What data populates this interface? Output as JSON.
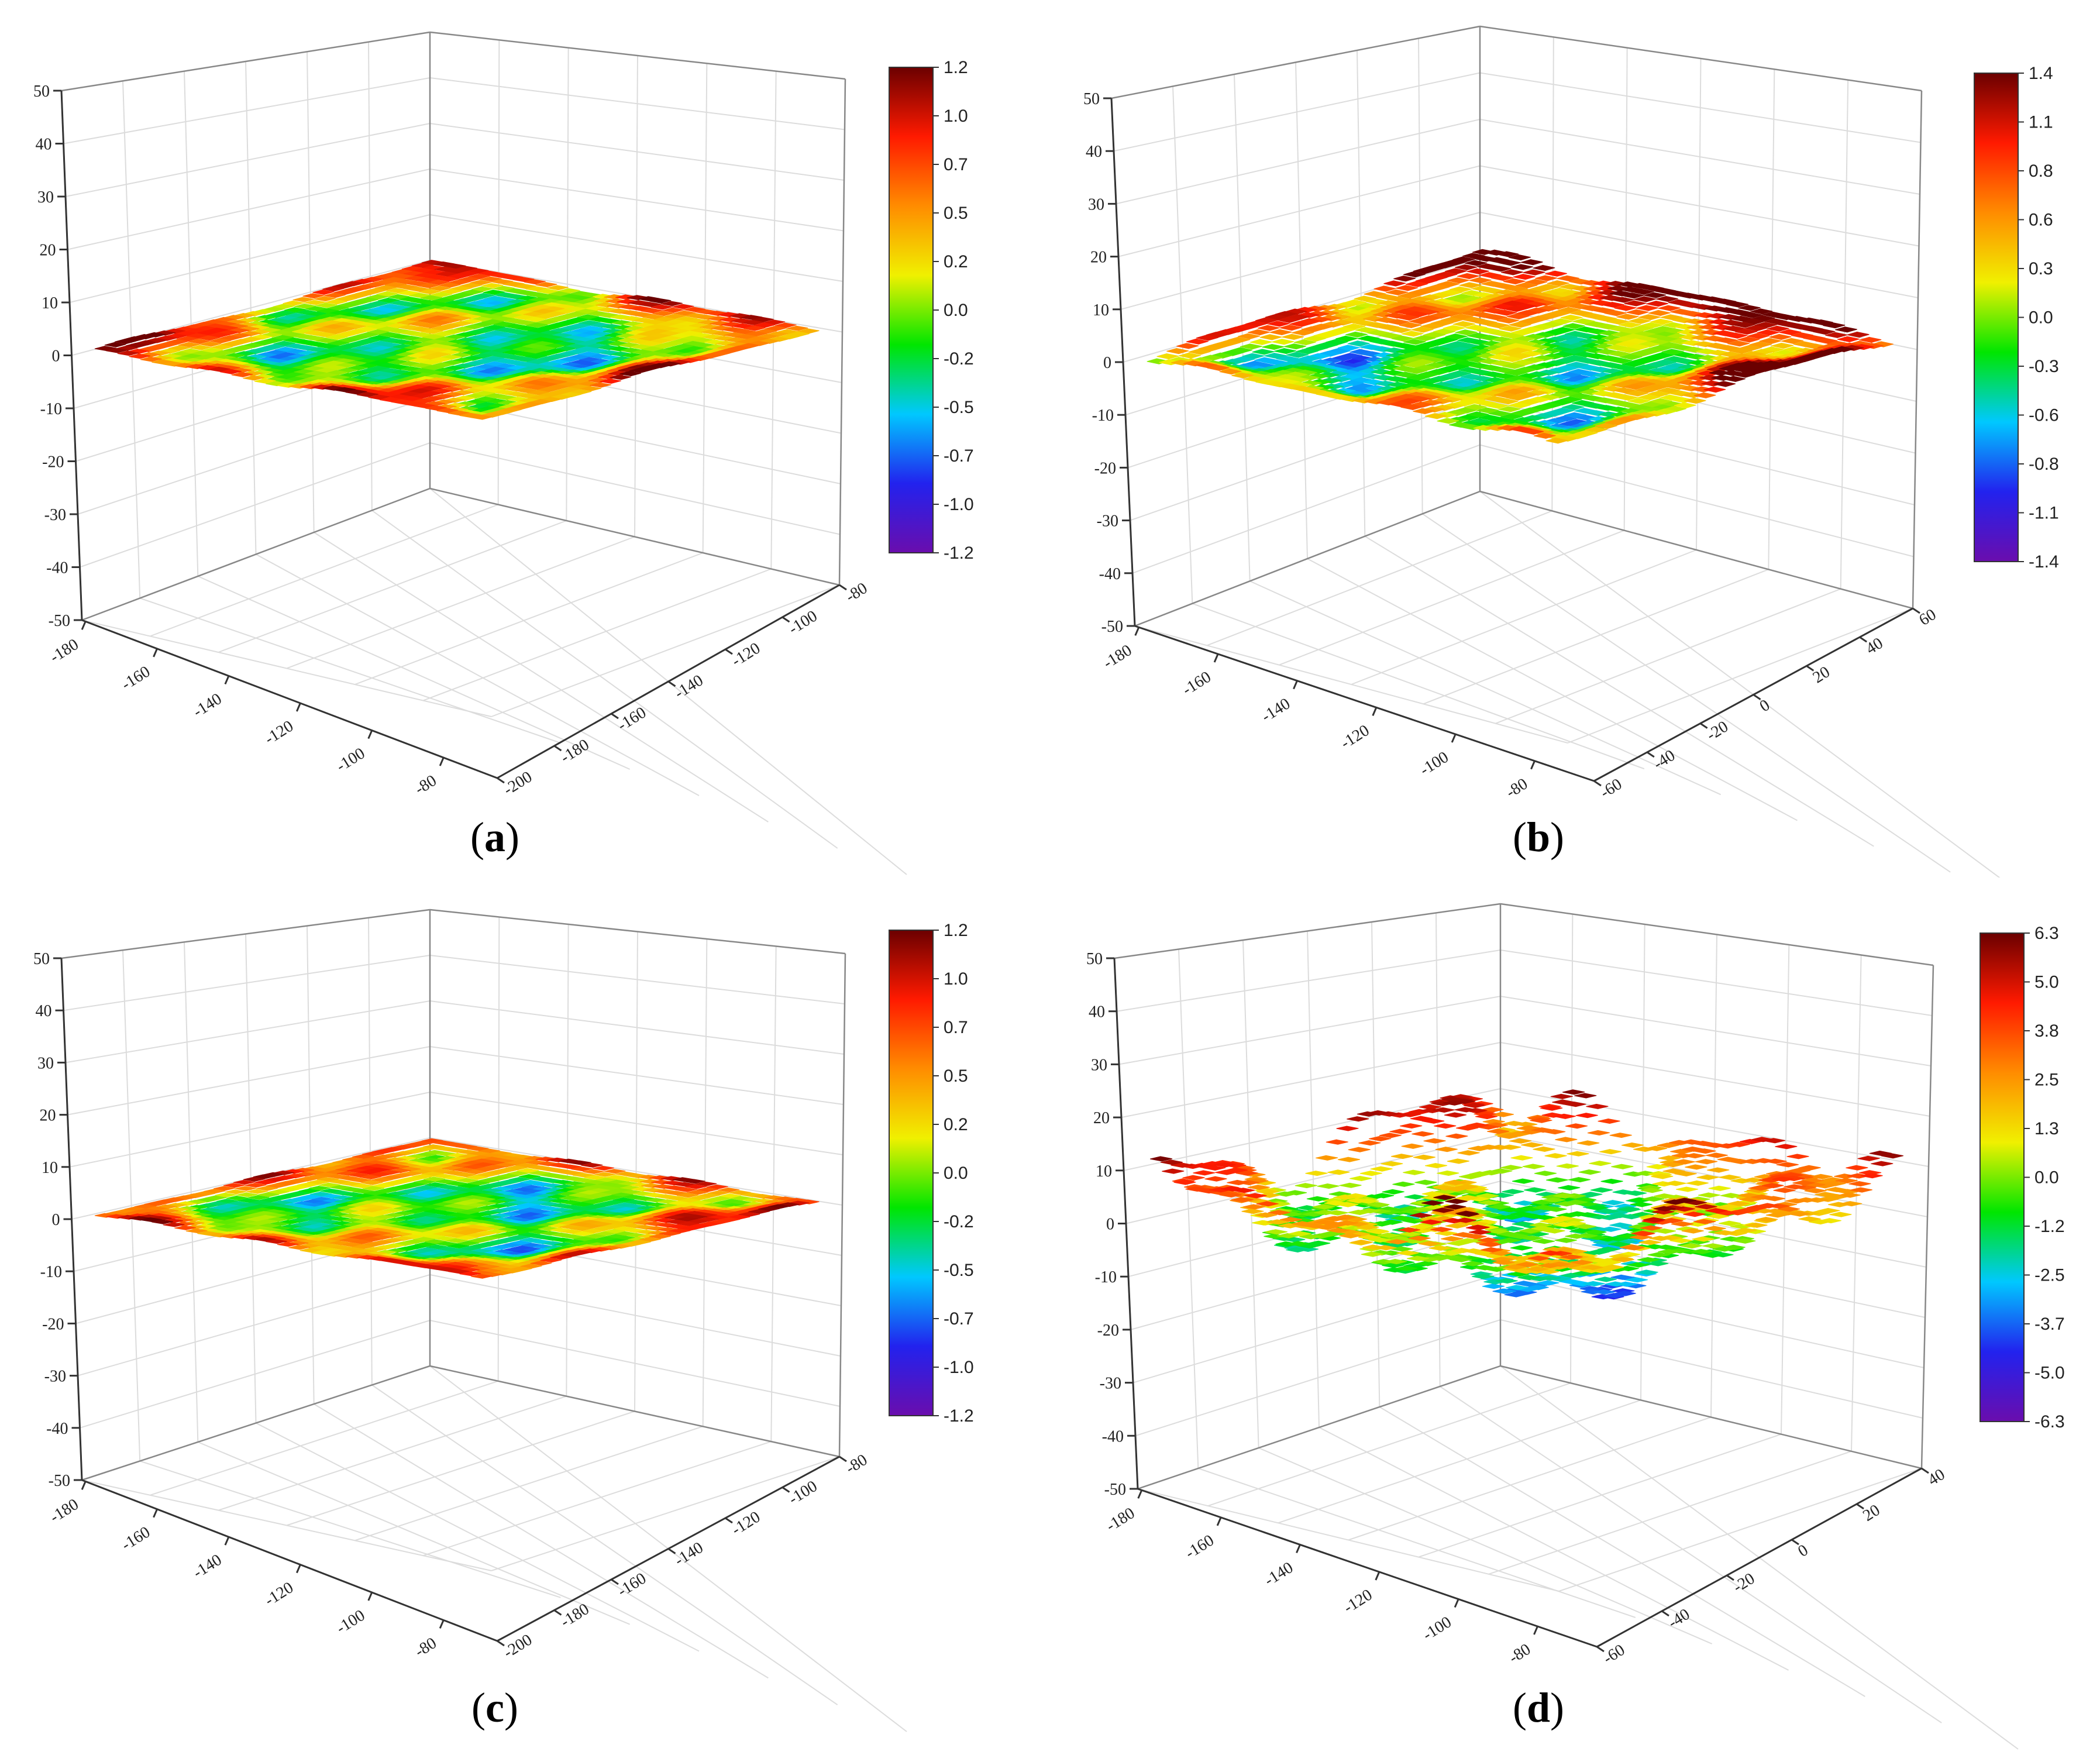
{
  "chart_data": [
    {
      "type": "heatmap",
      "subtype": "3d-surface",
      "panel_label": "a",
      "z_ticks": [
        "50",
        "40",
        "30",
        "20",
        "10",
        "0",
        "-10",
        "-20",
        "-30",
        "-40",
        "-50"
      ],
      "zlim": [
        -50,
        50
      ],
      "x_ticks": [
        "-180",
        "-160",
        "-140",
        "-120",
        "-100",
        "-80"
      ],
      "y_ticks": [
        "-200",
        "-180",
        "-160",
        "-140",
        "-120",
        "-100",
        "-80"
      ],
      "colorbar_ticks": [
        "1.2",
        "1.0",
        "0.7",
        "0.5",
        "0.2",
        "0.0",
        "-0.2",
        "-0.5",
        "-0.7",
        "-1.0",
        "-1.2"
      ],
      "color_range": [
        -1.2,
        1.2
      ],
      "surface_relief": 0.15,
      "colormap": [
        "#6a0dad",
        "#2222ee",
        "#00c8ff",
        "#00e600",
        "#f0f000",
        "#ff8c00",
        "#ff1a00",
        "#6b0000"
      ],
      "grid": true
    },
    {
      "type": "heatmap",
      "subtype": "3d-surface",
      "panel_label": "b",
      "z_ticks": [
        "50",
        "40",
        "30",
        "20",
        "10",
        "0",
        "-10",
        "-20",
        "-30",
        "-40",
        "-50"
      ],
      "zlim": [
        -50,
        50
      ],
      "x_ticks": [
        "-180",
        "-160",
        "-140",
        "-120",
        "-100",
        "-80"
      ],
      "y_ticks": [
        "-60",
        "-40",
        "-20",
        "0",
        "20",
        "40",
        "60"
      ],
      "colorbar_ticks": [
        "1.4",
        "1.1",
        "0.8",
        "0.6",
        "0.3",
        "0.0",
        "-0.3",
        "-0.6",
        "-0.8",
        "-1.1",
        "-1.4"
      ],
      "color_range": [
        -1.4,
        1.4
      ],
      "surface_relief": 0.3,
      "colormap": [
        "#6a0dad",
        "#2222ee",
        "#00c8ff",
        "#00e600",
        "#f0f000",
        "#ff8c00",
        "#ff1a00",
        "#6b0000"
      ],
      "grid": true
    },
    {
      "type": "heatmap",
      "subtype": "3d-surface",
      "panel_label": "c",
      "z_ticks": [
        "50",
        "40",
        "30",
        "20",
        "10",
        "0",
        "-10",
        "-20",
        "-30",
        "-40",
        "-50"
      ],
      "zlim": [
        -50,
        50
      ],
      "x_ticks": [
        "-180",
        "-160",
        "-140",
        "-120",
        "-100",
        "-80"
      ],
      "y_ticks": [
        "-200",
        "-180",
        "-160",
        "-140",
        "-120",
        "-100",
        "-80"
      ],
      "colorbar_ticks": [
        "1.2",
        "1.0",
        "0.7",
        "0.5",
        "0.2",
        "0.0",
        "-0.2",
        "-0.5",
        "-0.7",
        "-1.0",
        "-1.2"
      ],
      "color_range": [
        -1.2,
        1.2
      ],
      "surface_relief": 0.15,
      "colormap": [
        "#6a0dad",
        "#2222ee",
        "#00c8ff",
        "#00e600",
        "#f0f000",
        "#ff8c00",
        "#ff1a00",
        "#6b0000"
      ],
      "grid": true
    },
    {
      "type": "heatmap",
      "subtype": "3d-surface",
      "panel_label": "d",
      "z_ticks": [
        "50",
        "40",
        "30",
        "20",
        "10",
        "0",
        "-10",
        "-20",
        "-30",
        "-40",
        "-50"
      ],
      "zlim": [
        -50,
        50
      ],
      "x_ticks": [
        "-180",
        "-160",
        "-140",
        "-120",
        "-100",
        "-80"
      ],
      "y_ticks": [
        "-60",
        "-40",
        "-20",
        "0",
        "20",
        "40"
      ],
      "colorbar_ticks": [
        "6.3",
        "5.0",
        "3.8",
        "2.5",
        "1.3",
        "0.0",
        "-1.2",
        "-2.5",
        "-3.7",
        "-5.0",
        "-6.3"
      ],
      "color_range": [
        -6.3,
        6.3
      ],
      "surface_relief": 1.6,
      "colormap": [
        "#6a0dad",
        "#2222ee",
        "#00c8ff",
        "#00e600",
        "#f0f000",
        "#ff8c00",
        "#ff1a00",
        "#6b0000"
      ],
      "grid": true
    }
  ]
}
